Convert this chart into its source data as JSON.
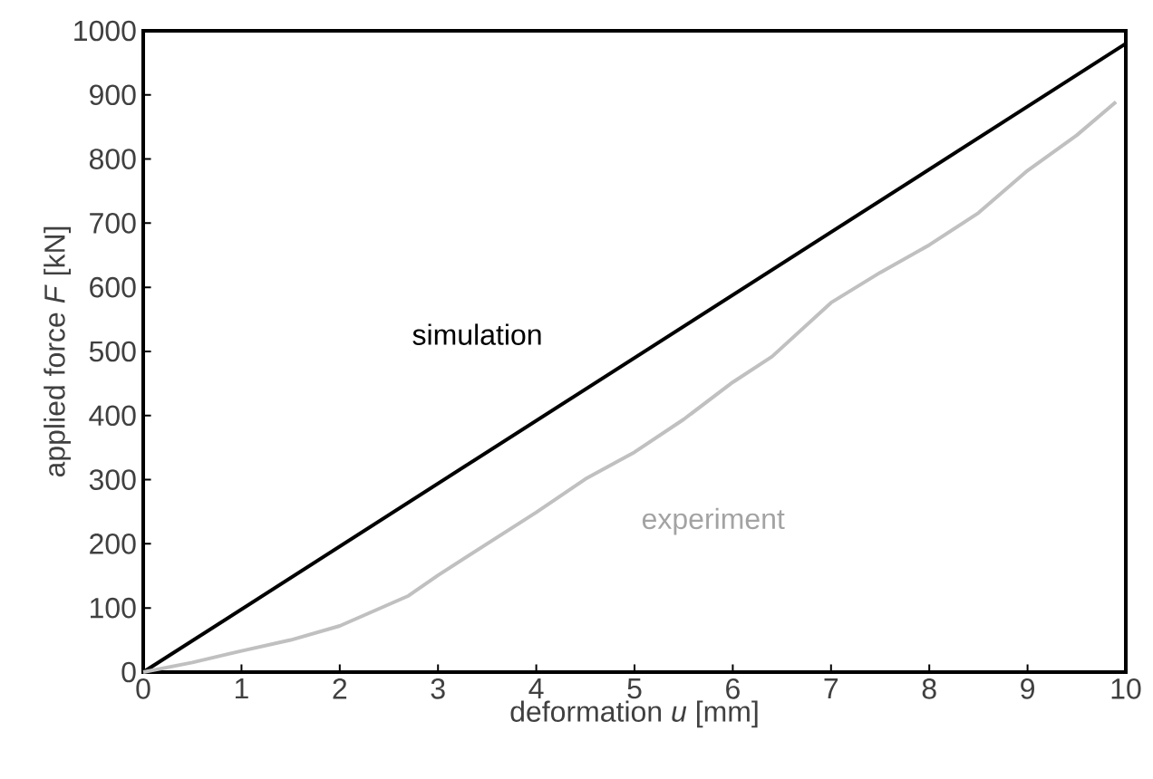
{
  "chart_data": {
    "type": "line",
    "xlabel": "deformation *u* [mm]",
    "ylabel": "applied force *F* [kN]",
    "xlim": [
      0,
      10
    ],
    "ylim": [
      0,
      1000
    ],
    "xticks": [
      0,
      1,
      2,
      3,
      4,
      5,
      6,
      7,
      8,
      9,
      10
    ],
    "yticks": [
      0,
      100,
      200,
      300,
      400,
      500,
      600,
      700,
      800,
      900,
      1000
    ],
    "grid": false,
    "legend": false,
    "marker": "none",
    "line_style": "solid",
    "series": [
      {
        "name": "simulation",
        "color": "#000000",
        "x": [
          0,
          10
        ],
        "values": [
          0,
          980
        ]
      },
      {
        "name": "experiment",
        "color": "#c0c0c0",
        "x": [
          0,
          0.5,
          1,
          1.5,
          2,
          2.7,
          3,
          3.5,
          4,
          4.5,
          5,
          5.5,
          6,
          6.4,
          7,
          7.5,
          8,
          8.5,
          9,
          9.5,
          9.9
        ],
        "values": [
          0,
          15,
          33,
          50,
          72,
          119,
          151,
          200,
          249,
          301,
          343,
          394,
          452,
          492,
          576,
          623,
          666,
          716,
          782,
          837,
          889
        ]
      }
    ]
  }
}
